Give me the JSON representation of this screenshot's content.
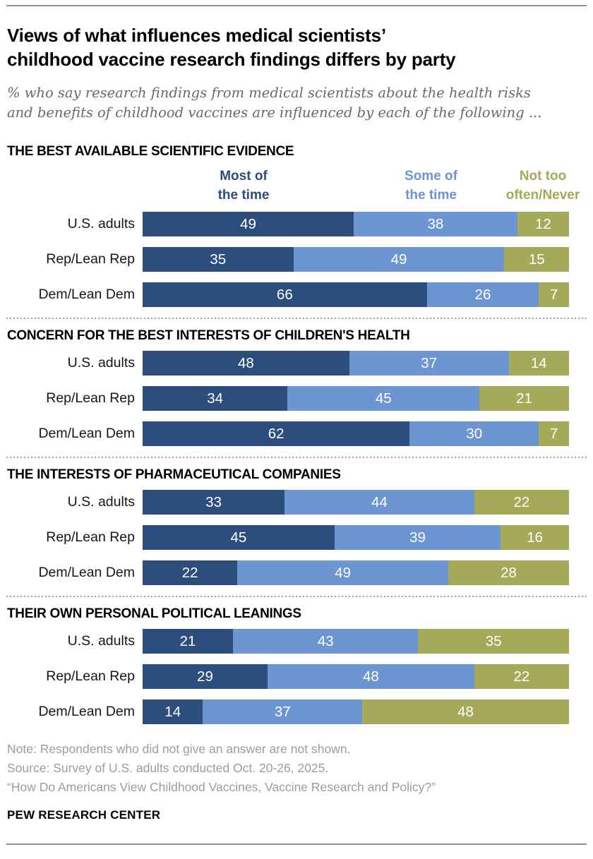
{
  "page": {
    "title_lines": [
      "Views of what influences medical scientists’",
      "childhood vaccine research findings differs by party"
    ],
    "subtitle_lines": [
      "% who say research findings from medical scientists about the health risks",
      "and benefits of childhood vaccines are influenced by each of the following ..."
    ]
  },
  "legend": {
    "items": [
      {
        "line1": "Most of",
        "line2": "the time",
        "color": "#2d4d7c"
      },
      {
        "line1": "Some of",
        "line2": "the time",
        "color": "#6d95d1"
      },
      {
        "line1": "Not too",
        "line2": "often/Never",
        "color": "#a4aa57"
      }
    ]
  },
  "chart_data": {
    "type": "bar",
    "variant": "stacked-horizontal",
    "value_unit": "percent",
    "series_names": [
      "Most of the time",
      "Some of the time",
      "Not too often/Never"
    ],
    "series_colors": [
      "#2d4d7c",
      "#6d95d1",
      "#a4aa57"
    ],
    "value_label_color": "#ffffff",
    "sections": [
      {
        "heading": "THE BEST AVAILABLE SCIENTIFIC EVIDENCE",
        "rows": [
          {
            "label": "U.S. adults",
            "values": [
              49,
              38,
              12
            ]
          },
          {
            "label": "Rep/Lean Rep",
            "values": [
              35,
              49,
              15
            ]
          },
          {
            "label": "Dem/Lean Dem",
            "values": [
              66,
              26,
              7
            ]
          }
        ]
      },
      {
        "heading": "CONCERN FOR THE BEST INTERESTS OF CHILDREN'S HEALTH",
        "rows": [
          {
            "label": "U.S. adults",
            "values": [
              48,
              37,
              14
            ]
          },
          {
            "label": "Rep/Lean Rep",
            "values": [
              34,
              45,
              21
            ]
          },
          {
            "label": "Dem/Lean Dem",
            "values": [
              62,
              30,
              7
            ]
          }
        ]
      },
      {
        "heading": "THE INTERESTS OF PHARMACEUTICAL COMPANIES",
        "rows": [
          {
            "label": "U.S. adults",
            "values": [
              33,
              44,
              22
            ]
          },
          {
            "label": "Rep/Lean Rep",
            "values": [
              45,
              39,
              16
            ]
          },
          {
            "label": "Dem/Lean Dem",
            "values": [
              22,
              49,
              28
            ]
          }
        ]
      },
      {
        "heading": "THEIR OWN PERSONAL POLITICAL LEANINGS",
        "rows": [
          {
            "label": "U.S. adults",
            "values": [
              21,
              43,
              35
            ]
          },
          {
            "label": "Rep/Lean Rep",
            "values": [
              29,
              48,
              22
            ]
          },
          {
            "label": "Dem/Lean Dem",
            "values": [
              14,
              37,
              48
            ]
          }
        ]
      }
    ]
  },
  "footer": {
    "note": "Note: Respondents who did not give an answer are not shown.",
    "source": "Source: Survey of U.S. adults conducted Oct. 20-26, 2025.",
    "report": "“How Do Americans View Childhood Vaccines, Vaccine Research and Policy?”",
    "brand": "PEW RESEARCH CENTER"
  }
}
